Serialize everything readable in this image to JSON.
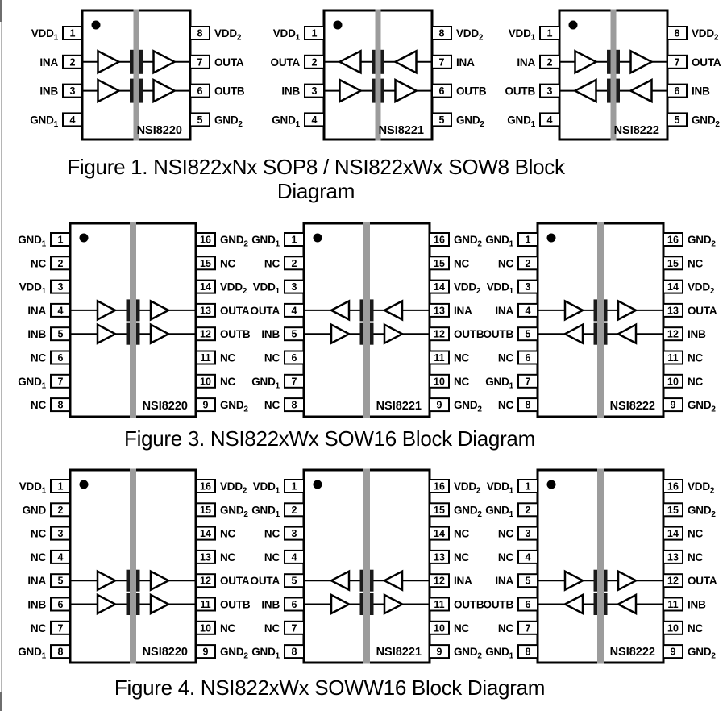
{
  "page": {
    "colors": {
      "background": "#ffffff",
      "line_black": "#000000",
      "isolation_barrier_gray": "#9c9c9c",
      "capacitor_plate_black": "#1a1a1a"
    }
  },
  "figures": [
    {
      "caption_lines": [
        "Figure 1. NSI822xNx SOP8 / NSI822xWx SOW8 Block",
        "Diagram"
      ],
      "chips": [
        {
          "label": "NSI8220",
          "pins_left": [
            {
              "name": "VDD",
              "sub": "1",
              "num": "1"
            },
            {
              "name": "INA",
              "sub": "",
              "num": "2"
            },
            {
              "name": "INB",
              "sub": "",
              "num": "3"
            },
            {
              "name": "GND",
              "sub": "1",
              "num": "4"
            }
          ],
          "pins_right": [
            {
              "name": "VDD",
              "sub": "2",
              "num": "8"
            },
            {
              "name": "OUTA",
              "sub": "",
              "num": "7"
            },
            {
              "name": "OUTB",
              "sub": "",
              "num": "6"
            },
            {
              "name": "GND",
              "sub": "2",
              "num": "5"
            }
          ],
          "channels": [
            {
              "pin_row": 1,
              "direction": "right"
            },
            {
              "pin_row": 2,
              "direction": "right"
            }
          ]
        },
        {
          "label": "NSI8221",
          "pins_left": [
            {
              "name": "VDD",
              "sub": "1",
              "num": "1"
            },
            {
              "name": "OUTA",
              "sub": "",
              "num": "2"
            },
            {
              "name": "INB",
              "sub": "",
              "num": "3"
            },
            {
              "name": "GND",
              "sub": "1",
              "num": "4"
            }
          ],
          "pins_right": [
            {
              "name": "VDD",
              "sub": "2",
              "num": "8"
            },
            {
              "name": "INA",
              "sub": "",
              "num": "7"
            },
            {
              "name": "OUTB",
              "sub": "",
              "num": "6"
            },
            {
              "name": "GND",
              "sub": "2",
              "num": "5"
            }
          ],
          "channels": [
            {
              "pin_row": 1,
              "direction": "left"
            },
            {
              "pin_row": 2,
              "direction": "right"
            }
          ]
        },
        {
          "label": "NSI8222",
          "pins_left": [
            {
              "name": "VDD",
              "sub": "1",
              "num": "1"
            },
            {
              "name": "INA",
              "sub": "",
              "num": "2"
            },
            {
              "name": "OUTB",
              "sub": "",
              "num": "3"
            },
            {
              "name": "GND",
              "sub": "1",
              "num": "4"
            }
          ],
          "pins_right": [
            {
              "name": "VDD",
              "sub": "2",
              "num": "8"
            },
            {
              "name": "OUTA",
              "sub": "",
              "num": "7"
            },
            {
              "name": "INB",
              "sub": "",
              "num": "6"
            },
            {
              "name": "GND",
              "sub": "2",
              "num": "5"
            }
          ],
          "channels": [
            {
              "pin_row": 1,
              "direction": "right"
            },
            {
              "pin_row": 2,
              "direction": "left"
            }
          ]
        }
      ]
    },
    {
      "caption_lines": [
        "Figure 3. NSI822xWx SOW16 Block Diagram"
      ],
      "chips": [
        {
          "label": "NSI8220",
          "pins_left": [
            {
              "name": "GND",
              "sub": "1",
              "num": "1"
            },
            {
              "name": "NC",
              "sub": "",
              "num": "2"
            },
            {
              "name": "VDD",
              "sub": "1",
              "num": "3"
            },
            {
              "name": "INA",
              "sub": "",
              "num": "4"
            },
            {
              "name": "INB",
              "sub": "",
              "num": "5"
            },
            {
              "name": "NC",
              "sub": "",
              "num": "6"
            },
            {
              "name": "GND",
              "sub": "1",
              "num": "7"
            },
            {
              "name": "NC",
              "sub": "",
              "num": "8"
            }
          ],
          "pins_right": [
            {
              "name": "GND",
              "sub": "2",
              "num": "16"
            },
            {
              "name": "NC",
              "sub": "",
              "num": "15"
            },
            {
              "name": "VDD",
              "sub": "2",
              "num": "14"
            },
            {
              "name": "OUTA",
              "sub": "",
              "num": "13"
            },
            {
              "name": "OUTB",
              "sub": "",
              "num": "12"
            },
            {
              "name": "NC",
              "sub": "",
              "num": "11"
            },
            {
              "name": "NC",
              "sub": "",
              "num": "10"
            },
            {
              "name": "GND",
              "sub": "2",
              "num": "9"
            }
          ],
          "channels": [
            {
              "pin_row": 3,
              "direction": "right"
            },
            {
              "pin_row": 4,
              "direction": "right"
            }
          ]
        },
        {
          "label": "NSI8221",
          "pins_left": [
            {
              "name": "GND",
              "sub": "1",
              "num": "1"
            },
            {
              "name": "NC",
              "sub": "",
              "num": "2"
            },
            {
              "name": "VDD",
              "sub": "1",
              "num": "3"
            },
            {
              "name": "OUTA",
              "sub": "",
              "num": "4"
            },
            {
              "name": "INB",
              "sub": "",
              "num": "5"
            },
            {
              "name": "NC",
              "sub": "",
              "num": "6"
            },
            {
              "name": "GND",
              "sub": "1",
              "num": "7"
            },
            {
              "name": "NC",
              "sub": "",
              "num": "8"
            }
          ],
          "pins_right": [
            {
              "name": "GND",
              "sub": "2",
              "num": "16"
            },
            {
              "name": "NC",
              "sub": "",
              "num": "15"
            },
            {
              "name": "VDD",
              "sub": "2",
              "num": "14"
            },
            {
              "name": "INA",
              "sub": "",
              "num": "13"
            },
            {
              "name": "OUTB",
              "sub": "",
              "num": "12"
            },
            {
              "name": "NC",
              "sub": "",
              "num": "11"
            },
            {
              "name": "NC",
              "sub": "",
              "num": "10"
            },
            {
              "name": "GND",
              "sub": "2",
              "num": "9"
            }
          ],
          "channels": [
            {
              "pin_row": 3,
              "direction": "left"
            },
            {
              "pin_row": 4,
              "direction": "right"
            }
          ]
        },
        {
          "label": "NSI8222",
          "pins_left": [
            {
              "name": "GND",
              "sub": "1",
              "num": "1"
            },
            {
              "name": "NC",
              "sub": "",
              "num": "2"
            },
            {
              "name": "VDD",
              "sub": "1",
              "num": "3"
            },
            {
              "name": "INA",
              "sub": "",
              "num": "4"
            },
            {
              "name": "OUTB",
              "sub": "",
              "num": "5"
            },
            {
              "name": "NC",
              "sub": "",
              "num": "6"
            },
            {
              "name": "GND",
              "sub": "1",
              "num": "7"
            },
            {
              "name": "NC",
              "sub": "",
              "num": "8"
            }
          ],
          "pins_right": [
            {
              "name": "GND",
              "sub": "2",
              "num": "16"
            },
            {
              "name": "NC",
              "sub": "",
              "num": "15"
            },
            {
              "name": "VDD",
              "sub": "2",
              "num": "14"
            },
            {
              "name": "OUTA",
              "sub": "",
              "num": "13"
            },
            {
              "name": "INB",
              "sub": "",
              "num": "12"
            },
            {
              "name": "NC",
              "sub": "",
              "num": "11"
            },
            {
              "name": "NC",
              "sub": "",
              "num": "10"
            },
            {
              "name": "GND",
              "sub": "2",
              "num": "9"
            }
          ],
          "channels": [
            {
              "pin_row": 3,
              "direction": "right"
            },
            {
              "pin_row": 4,
              "direction": "left"
            }
          ]
        }
      ]
    },
    {
      "caption_lines": [
        "Figure 4. NSI822xWx SOWW16 Block Diagram"
      ],
      "chips": [
        {
          "label": "NSI8220",
          "pins_left": [
            {
              "name": "VDD",
              "sub": "1",
              "num": "1"
            },
            {
              "name": "GND",
              "sub": "",
              "num": "2"
            },
            {
              "name": "NC",
              "sub": "",
              "num": "3"
            },
            {
              "name": "NC",
              "sub": "",
              "num": "4"
            },
            {
              "name": "INA",
              "sub": "",
              "num": "5"
            },
            {
              "name": "INB",
              "sub": "",
              "num": "6"
            },
            {
              "name": "NC",
              "sub": "",
              "num": "7"
            },
            {
              "name": "GND",
              "sub": "1",
              "num": "8"
            }
          ],
          "pins_right": [
            {
              "name": "VDD",
              "sub": "2",
              "num": "16"
            },
            {
              "name": "GND",
              "sub": "2",
              "num": "15"
            },
            {
              "name": "NC",
              "sub": "",
              "num": "14"
            },
            {
              "name": "NC",
              "sub": "",
              "num": "13"
            },
            {
              "name": "OUTA",
              "sub": "",
              "num": "12"
            },
            {
              "name": "OUTB",
              "sub": "",
              "num": "11"
            },
            {
              "name": "NC",
              "sub": "",
              "num": "10"
            },
            {
              "name": "GND",
              "sub": "2",
              "num": "9"
            }
          ],
          "channels": [
            {
              "pin_row": 4,
              "direction": "right"
            },
            {
              "pin_row": 5,
              "direction": "right"
            }
          ]
        },
        {
          "label": "NSI8221",
          "pins_left": [
            {
              "name": "VDD",
              "sub": "1",
              "num": "1"
            },
            {
              "name": "GND",
              "sub": "1",
              "num": "2"
            },
            {
              "name": "NC",
              "sub": "",
              "num": "3"
            },
            {
              "name": "NC",
              "sub": "",
              "num": "4"
            },
            {
              "name": "OUTA",
              "sub": "",
              "num": "5"
            },
            {
              "name": "INB",
              "sub": "",
              "num": "6"
            },
            {
              "name": "NC",
              "sub": "",
              "num": "7"
            },
            {
              "name": "GND",
              "sub": "1",
              "num": "8"
            }
          ],
          "pins_right": [
            {
              "name": "VDD",
              "sub": "2",
              "num": "16"
            },
            {
              "name": "GND",
              "sub": "2",
              "num": "15"
            },
            {
              "name": "NC",
              "sub": "",
              "num": "14"
            },
            {
              "name": "NC",
              "sub": "",
              "num": "13"
            },
            {
              "name": "INA",
              "sub": "",
              "num": "12"
            },
            {
              "name": "OUTB",
              "sub": "",
              "num": "11"
            },
            {
              "name": "NC",
              "sub": "",
              "num": "10"
            },
            {
              "name": "GND",
              "sub": "2",
              "num": "9"
            }
          ],
          "channels": [
            {
              "pin_row": 4,
              "direction": "left"
            },
            {
              "pin_row": 5,
              "direction": "right"
            }
          ]
        },
        {
          "label": "NSI8222",
          "pins_left": [
            {
              "name": "VDD",
              "sub": "1",
              "num": "1"
            },
            {
              "name": "GND",
              "sub": "1",
              "num": "2"
            },
            {
              "name": "NC",
              "sub": "",
              "num": "3"
            },
            {
              "name": "NC",
              "sub": "",
              "num": "4"
            },
            {
              "name": "INA",
              "sub": "",
              "num": "5"
            },
            {
              "name": "OUTB",
              "sub": "",
              "num": "6"
            },
            {
              "name": "NC",
              "sub": "",
              "num": "7"
            },
            {
              "name": "GND",
              "sub": "1",
              "num": "8"
            }
          ],
          "pins_right": [
            {
              "name": "VDD",
              "sub": "2",
              "num": "16"
            },
            {
              "name": "GND",
              "sub": "2",
              "num": "15"
            },
            {
              "name": "NC",
              "sub": "",
              "num": "14"
            },
            {
              "name": "NC",
              "sub": "",
              "num": "13"
            },
            {
              "name": "OUTA",
              "sub": "",
              "num": "12"
            },
            {
              "name": "INB",
              "sub": "",
              "num": "11"
            },
            {
              "name": "NC",
              "sub": "",
              "num": "10"
            },
            {
              "name": "GND",
              "sub": "2",
              "num": "9"
            }
          ],
          "channels": [
            {
              "pin_row": 4,
              "direction": "right"
            },
            {
              "pin_row": 5,
              "direction": "left"
            }
          ]
        }
      ]
    }
  ]
}
